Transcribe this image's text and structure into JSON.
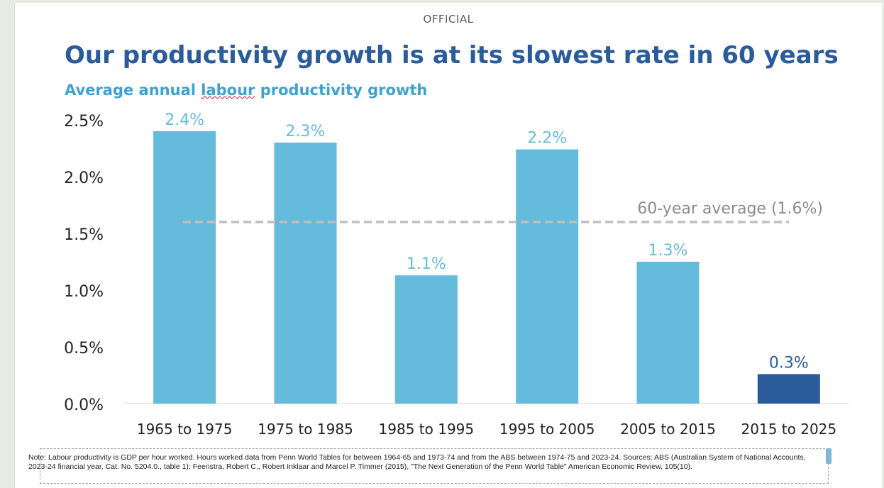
{
  "classification": "OFFICIAL",
  "title": "Our productivity growth is at its slowest rate in 60 years",
  "subtitle_pre": "Average annual ",
  "subtitle_underlined": "labour",
  "subtitle_post": " productivity growth",
  "note": "Note: Labour productivity is GDP per hour worked. Hours worked data from Penn World Tables for between 1964-65 and 1973-74 and from the ABS between 1974-75 and 2023-24. Sources: ABS (Australian System of National Accounts, 2023-24 financial year, Cat. No. 5204.0., table 1); Feenstra, Robert C., Robert Inklaar and Marcel P. Timmer (2015), \"The Next Generation of the Penn World Table\" American Economic Review, 105(10).",
  "colors": {
    "bar": "#65bbdc",
    "bar_highlight": "#2a5b9a",
    "label": "#65bbdc",
    "label_highlight": "#2a5b9a",
    "average_line": "#bfbfbf",
    "average_text": "#8c8c8c",
    "axis_text": "#222222"
  },
  "chart_data": {
    "type": "bar",
    "title": "Our productivity growth is at its slowest rate in 60 years",
    "subtitle": "Average annual labour productivity growth",
    "categories": [
      "1965 to 1975",
      "1975 to 1985",
      "1985 to 1995",
      "1995 to 2005",
      "2005 to 2015",
      "2015 to 2025"
    ],
    "values": [
      2.4,
      2.3,
      1.13,
      2.24,
      1.25,
      0.26
    ],
    "data_labels": [
      "2.4%",
      "2.3%",
      "1.1%",
      "2.2%",
      "1.3%",
      "0.3%"
    ],
    "highlight_index": 5,
    "ylim": [
      0,
      2.5
    ],
    "yticks": [
      0,
      0.5,
      1.0,
      1.5,
      2.0,
      2.5
    ],
    "ytick_labels": [
      "0.0%",
      "0.5%",
      "1.0%",
      "1.5%",
      "2.0%",
      "2.5%"
    ],
    "reference_line": {
      "value": 1.6,
      "label": "60-year average (1.6%)"
    },
    "xlabel": "",
    "ylabel": "",
    "grid": false,
    "legend": "none"
  }
}
